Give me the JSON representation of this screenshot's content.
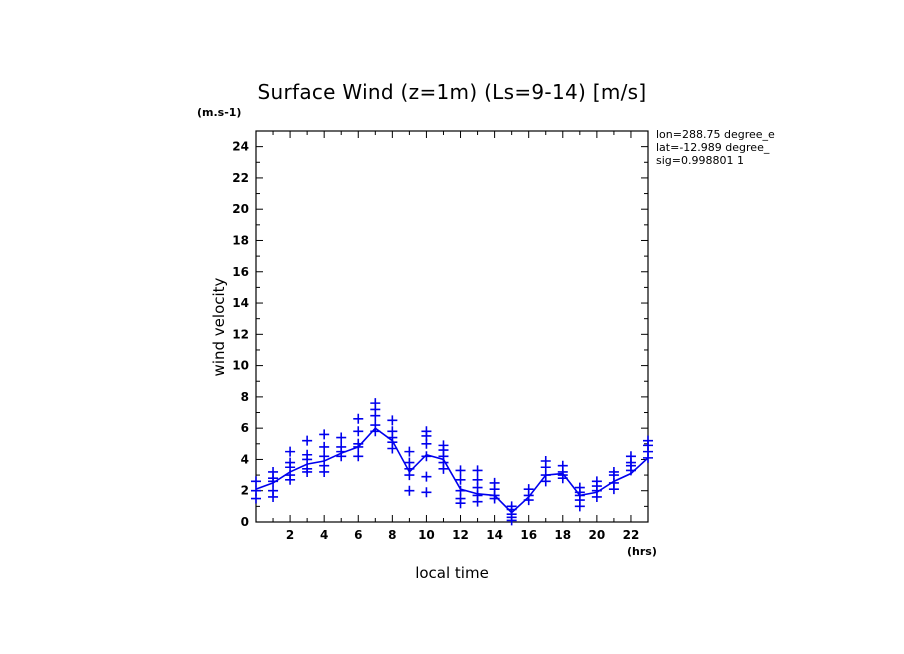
{
  "chart_data": {
    "type": "line",
    "title": "Surface Wind (z=1m) (Ls=9-14) [m/s]",
    "ylabel": "wind velocity",
    "yunit": "(m.s-1)",
    "xlabel": "local time",
    "xunit": "(hrs)",
    "xlim": [
      0,
      23.0
    ],
    "ylim": [
      0,
      25
    ],
    "xticks": [
      2,
      4,
      6,
      8,
      10,
      12,
      14,
      16,
      18,
      20,
      22
    ],
    "yticks": [
      0,
      2,
      4,
      6,
      8,
      10,
      12,
      14,
      16,
      18,
      20,
      22,
      24
    ],
    "info": [
      "lon=288.75 degree_e",
      "lat=-12.989 degree_",
      "sig=0.998801 1"
    ],
    "color": "#0000ee",
    "mean_x": [
      0.0,
      1.0,
      2.0,
      3.0,
      4.0,
      5.0,
      6.0,
      7.0,
      8.0,
      9.0,
      10.0,
      11.0,
      12.0,
      13.0,
      14.0,
      15.0,
      16.0,
      17.0,
      18.0,
      19.0,
      20.0,
      21.0,
      22.0,
      23.0
    ],
    "mean_y": [
      2.1,
      2.5,
      3.2,
      3.7,
      3.9,
      4.4,
      4.8,
      6.0,
      5.2,
      3.2,
      4.3,
      4.0,
      2.1,
      1.8,
      1.7,
      0.6,
      1.6,
      3.0,
      3.1,
      1.7,
      1.9,
      2.6,
      3.1,
      4.1
    ],
    "samples": [
      {
        "x": 0.0,
        "y": [
          2.6,
          2.0,
          1.5
        ]
      },
      {
        "x": 1.0,
        "y": [
          3.2,
          2.8,
          2.6,
          2.0,
          1.6
        ]
      },
      {
        "x": 2.0,
        "y": [
          4.5,
          3.8,
          3.5,
          3.0,
          2.7
        ]
      },
      {
        "x": 3.0,
        "y": [
          5.2,
          4.3,
          4.0,
          3.4,
          3.2
        ]
      },
      {
        "x": 4.0,
        "y": [
          5.6,
          4.8,
          4.2,
          3.6,
          3.2
        ]
      },
      {
        "x": 5.0,
        "y": [
          5.4,
          4.8,
          4.5,
          4.2
        ]
      },
      {
        "x": 6.0,
        "y": [
          6.6,
          5.8,
          5.0,
          4.8,
          4.2
        ]
      },
      {
        "x": 7.0,
        "y": [
          7.6,
          7.2,
          6.8,
          6.2,
          5.8
        ]
      },
      {
        "x": 8.0,
        "y": [
          6.5,
          5.8,
          5.4,
          5.1,
          4.7
        ]
      },
      {
        "x": 9.0,
        "y": [
          4.5,
          3.8,
          3.4,
          3.0,
          2.0
        ]
      },
      {
        "x": 10.0,
        "y": [
          5.8,
          5.5,
          5.0,
          4.2,
          2.9,
          1.9
        ]
      },
      {
        "x": 11.0,
        "y": [
          4.9,
          4.6,
          4.2,
          3.8,
          3.4
        ]
      },
      {
        "x": 12.0,
        "y": [
          3.3,
          2.7,
          2.0,
          1.5,
          1.2
        ]
      },
      {
        "x": 13.0,
        "y": [
          3.3,
          2.7,
          2.2,
          1.7,
          1.3
        ]
      },
      {
        "x": 14.0,
        "y": [
          2.5,
          2.1,
          1.7,
          1.5
        ]
      },
      {
        "x": 15.0,
        "y": [
          1.0,
          0.8,
          0.5,
          0.3,
          0.1
        ]
      },
      {
        "x": 16.0,
        "y": [
          2.1,
          1.7,
          1.4
        ]
      },
      {
        "x": 17.0,
        "y": [
          3.9,
          3.5,
          3.0,
          2.6
        ]
      },
      {
        "x": 18.0,
        "y": [
          3.6,
          3.2,
          3.0,
          2.8
        ]
      },
      {
        "x": 19.0,
        "y": [
          2.2,
          1.9,
          1.7,
          1.4,
          1.0
        ]
      },
      {
        "x": 20.0,
        "y": [
          2.6,
          2.3,
          2.0,
          1.6
        ]
      },
      {
        "x": 21.0,
        "y": [
          3.2,
          3.0,
          2.5,
          2.1
        ]
      },
      {
        "x": 22.0,
        "y": [
          4.2,
          3.8,
          3.6,
          3.3
        ]
      },
      {
        "x": 23.0,
        "y": [
          5.2,
          4.9,
          4.5,
          4.1
        ]
      }
    ]
  }
}
